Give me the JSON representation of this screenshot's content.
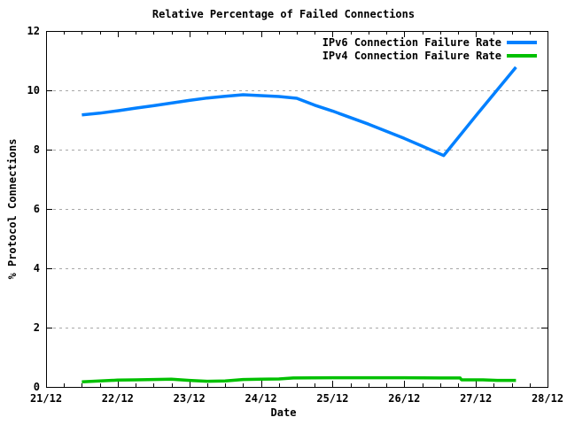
{
  "chart_data": {
    "type": "line",
    "title": "Relative Percentage of Failed Connections",
    "xlabel": "Date",
    "ylabel": "% Protocol Connections",
    "xlim_days": [
      0,
      7
    ],
    "ylim": [
      0,
      12
    ],
    "x_tick_labels": [
      "21/12",
      "22/12",
      "23/12",
      "24/12",
      "25/12",
      "26/12",
      "27/12",
      "28/12"
    ],
    "x_tick_days": [
      0,
      1,
      2,
      3,
      4,
      5,
      6,
      7
    ],
    "x_minor_ticks_per_day": 4,
    "y_ticks": [
      0,
      2,
      4,
      6,
      8,
      10,
      12
    ],
    "grid_y_values": [
      2,
      4,
      6,
      8,
      10
    ],
    "grid_style": "dashed-horizontal-only",
    "legend_position": "top-right-inside",
    "colors": {
      "axis": "#000000",
      "grid": "#a8a8a8",
      "background": "#ffffff"
    },
    "series": [
      {
        "name": "IPv6 Connection Failure Rate",
        "color": "#0080ff",
        "x_unit": "days-after-21/12",
        "points": [
          [
            0.5,
            9.17
          ],
          [
            0.75,
            9.23
          ],
          [
            1.0,
            9.31
          ],
          [
            1.25,
            9.4
          ],
          [
            1.5,
            9.48
          ],
          [
            1.75,
            9.57
          ],
          [
            2.0,
            9.66
          ],
          [
            2.25,
            9.74
          ],
          [
            2.5,
            9.8
          ],
          [
            2.75,
            9.85
          ],
          [
            3.0,
            9.82
          ],
          [
            3.25,
            9.79
          ],
          [
            3.5,
            9.73
          ],
          [
            3.75,
            9.5
          ],
          [
            4.0,
            9.3
          ],
          [
            4.25,
            9.08
          ],
          [
            4.5,
            8.86
          ],
          [
            4.75,
            8.62
          ],
          [
            5.0,
            8.38
          ],
          [
            5.25,
            8.12
          ],
          [
            5.55,
            7.8
          ],
          [
            6.0,
            9.14
          ],
          [
            6.56,
            10.78
          ]
        ]
      },
      {
        "name": "IPv4 Connection Failure Rate",
        "color": "#00c000",
        "x_unit": "days-after-21/12",
        "points": [
          [
            0.5,
            0.17
          ],
          [
            0.75,
            0.2
          ],
          [
            1.0,
            0.23
          ],
          [
            1.25,
            0.24
          ],
          [
            1.5,
            0.25
          ],
          [
            1.75,
            0.26
          ],
          [
            2.0,
            0.22
          ],
          [
            2.25,
            0.19
          ],
          [
            2.5,
            0.2
          ],
          [
            2.75,
            0.25
          ],
          [
            3.0,
            0.26
          ],
          [
            3.25,
            0.27
          ],
          [
            3.45,
            0.3
          ],
          [
            4.0,
            0.31
          ],
          [
            4.5,
            0.31
          ],
          [
            5.0,
            0.31
          ],
          [
            5.5,
            0.3
          ],
          [
            5.78,
            0.3
          ],
          [
            5.8,
            0.24
          ],
          [
            6.1,
            0.24
          ],
          [
            6.3,
            0.22
          ],
          [
            6.56,
            0.22
          ]
        ]
      }
    ]
  }
}
